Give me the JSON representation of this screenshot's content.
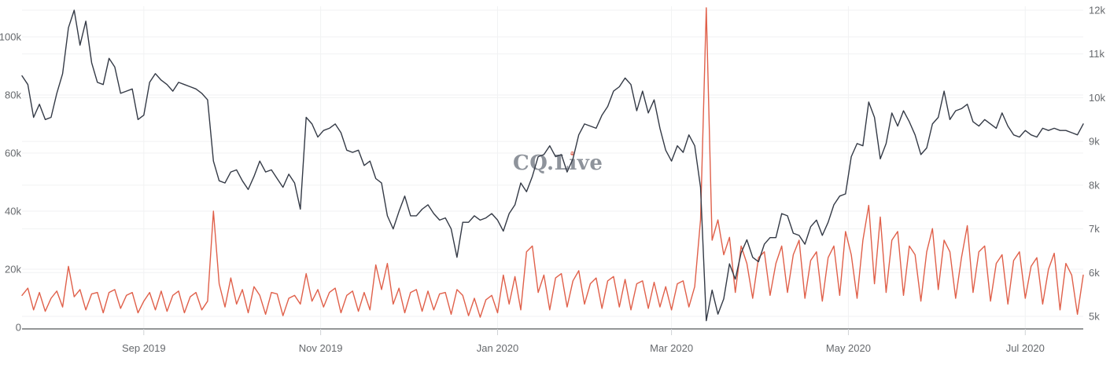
{
  "page": {
    "background": "#ffffff"
  },
  "watermark": {
    "text": "CQ.Live",
    "pre": "CQ.L",
    "i": "ı",
    "post": "ve",
    "text_color": "#8e939b",
    "dot_color": "#e4705e"
  },
  "colors": {
    "axis_text": "#66696d",
    "grid": "#f1f2f3",
    "baseline": "#707377",
    "tick_mark": "#cfd2d5",
    "dark_series": "#343a46",
    "orange_series": "#e0604a"
  },
  "chart_data": {
    "type": "line",
    "title": "",
    "watermark": "CQ.Live",
    "grid": {
      "horizontal": true,
      "vertical": true,
      "color": "#f1f2f3"
    },
    "x_axis": {
      "tick_labels": [
        "Sep 2019",
        "Nov 2019",
        "Jan 2020",
        "Mar 2020",
        "May 2020",
        "Jul 2020"
      ],
      "tick_day_offsets": [
        42,
        103,
        164,
        224,
        285,
        346
      ],
      "span_days": 366
    },
    "left_axis": {
      "tick_labels": [
        "0",
        "20k",
        "40k",
        "60k",
        "80k",
        "100k"
      ],
      "tick_values": [
        0,
        20,
        40,
        60,
        80,
        100
      ],
      "min": 0,
      "max": 110,
      "unit": "thousands"
    },
    "right_axis": {
      "tick_labels": [
        "5k",
        "6k",
        "7k",
        "8k",
        "9k",
        "10k",
        "11k",
        "12k"
      ],
      "tick_values": [
        5,
        6,
        7,
        8,
        9,
        10,
        11,
        12
      ],
      "min": 5,
      "max": 12,
      "unit": "thousands"
    },
    "sample_interval_days": 2,
    "series": [
      {
        "name": "orange_line",
        "axis": "left",
        "color": "#e0604a",
        "values": [
          11,
          13.5,
          6,
          12,
          5.5,
          10,
          12.5,
          7,
          21,
          10.5,
          13,
          6,
          11.5,
          12,
          5,
          12,
          13,
          6.5,
          11,
          12,
          5,
          9,
          12,
          6,
          12.5,
          5.5,
          11,
          12.5,
          5,
          10.5,
          12,
          6,
          9,
          40,
          15,
          7,
          17,
          8,
          13,
          5,
          14,
          11,
          4.5,
          12,
          11.5,
          4,
          10,
          11,
          8,
          18.5,
          9,
          13,
          7,
          12,
          13.5,
          5,
          11,
          12.5,
          5.5,
          12,
          6,
          21.5,
          13,
          22,
          8,
          13.5,
          5,
          12,
          13,
          5.5,
          12.5,
          6,
          11.5,
          12,
          4.5,
          13,
          11,
          4,
          10,
          3.5,
          9.5,
          11,
          5,
          18,
          8,
          17.5,
          6,
          26,
          28,
          12,
          18,
          6,
          17,
          18.5,
          7,
          16,
          19.5,
          8,
          15,
          17,
          6.5,
          16,
          17.5,
          7,
          16.5,
          6,
          15,
          16,
          6.5,
          15.5,
          7,
          14,
          6,
          15,
          16,
          7,
          14,
          37,
          110,
          30,
          37,
          25,
          31,
          12,
          28,
          22,
          10,
          24,
          26,
          11,
          22,
          28,
          12,
          25,
          30,
          10,
          23,
          26,
          9,
          24,
          28,
          11,
          33,
          25,
          10,
          30,
          42,
          15,
          38,
          12,
          30,
          33,
          11,
          28,
          25,
          9,
          26,
          34,
          13,
          30,
          26,
          10,
          24,
          35,
          12,
          26,
          28,
          9,
          22,
          25,
          8,
          23,
          26,
          10,
          21,
          24,
          8,
          20,
          25.5,
          6,
          22,
          18,
          4.5,
          18
        ]
      },
      {
        "name": "dark_line",
        "axis": "right",
        "color": "#343a46",
        "values": [
          10.5,
          10.3,
          9.55,
          9.85,
          9.5,
          9.55,
          10.1,
          10.55,
          11.6,
          12.0,
          11.2,
          11.75,
          10.8,
          10.35,
          10.3,
          10.9,
          10.7,
          10.1,
          10.15,
          10.2,
          9.5,
          9.6,
          10.35,
          10.55,
          10.4,
          10.3,
          10.15,
          10.35,
          10.3,
          10.25,
          10.2,
          10.1,
          9.95,
          8.55,
          8.1,
          8.05,
          8.3,
          8.35,
          8.1,
          7.9,
          8.2,
          8.55,
          8.3,
          8.35,
          8.15,
          7.95,
          8.25,
          8.05,
          7.45,
          9.55,
          9.4,
          9.1,
          9.25,
          9.3,
          9.4,
          9.2,
          8.8,
          8.75,
          8.8,
          8.45,
          8.55,
          8.15,
          8.05,
          7.3,
          7.0,
          7.4,
          7.75,
          7.3,
          7.3,
          7.45,
          7.55,
          7.35,
          7.2,
          7.25,
          7.0,
          6.35,
          7.15,
          7.15,
          7.3,
          7.2,
          7.25,
          7.35,
          7.2,
          6.95,
          7.35,
          7.55,
          8.05,
          7.85,
          8.2,
          8.65,
          8.7,
          8.9,
          8.65,
          8.7,
          8.3,
          8.6,
          9.15,
          9.4,
          9.35,
          9.3,
          9.6,
          9.8,
          10.15,
          10.25,
          10.45,
          10.3,
          9.7,
          10.15,
          9.65,
          9.95,
          9.3,
          8.8,
          8.55,
          8.9,
          8.75,
          9.15,
          8.9,
          7.95,
          4.9,
          5.6,
          5.05,
          5.4,
          6.2,
          5.85,
          6.45,
          6.75,
          6.35,
          6.25,
          6.65,
          6.8,
          6.8,
          7.35,
          7.3,
          6.9,
          6.85,
          6.65,
          7.05,
          7.2,
          6.85,
          7.15,
          7.55,
          7.75,
          7.8,
          8.65,
          8.95,
          8.9,
          9.9,
          9.55,
          8.6,
          8.95,
          9.65,
          9.35,
          9.7,
          9.45,
          9.15,
          8.7,
          8.85,
          9.4,
          9.55,
          10.15,
          9.5,
          9.7,
          9.75,
          9.85,
          9.45,
          9.35,
          9.5,
          9.4,
          9.3,
          9.65,
          9.35,
          9.15,
          9.1,
          9.25,
          9.15,
          9.1,
          9.3,
          9.25,
          9.3,
          9.25,
          9.25,
          9.2,
          9.15,
          9.4
        ]
      }
    ]
  }
}
